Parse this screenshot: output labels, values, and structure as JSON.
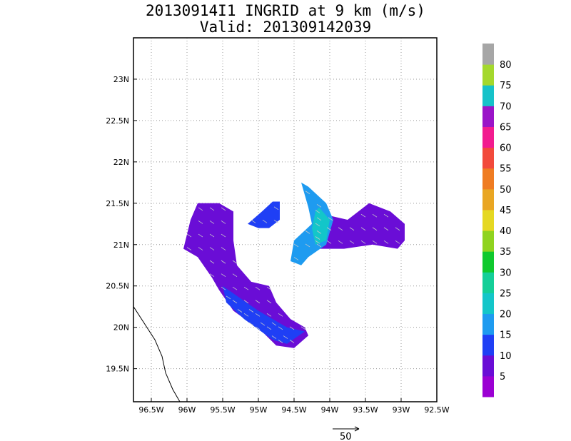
{
  "title_line1": "20130914I1 INGRID at 9 km (m/s)",
  "title_line2": "Valid: 201309142039",
  "vector_scale_label": "50",
  "chart_data": {
    "type": "heatmap",
    "title": "20130914I1 INGRID at 9 km (m/s)",
    "subtitle": "Valid: 201309142039",
    "xlabel": "",
    "ylabel": "",
    "xlim": [
      -96.75,
      -92.5
    ],
    "ylim": [
      19.1,
      23.5
    ],
    "grid": true,
    "x_ticks": [
      {
        "value": -96.5,
        "label": "96.5W"
      },
      {
        "value": -96.0,
        "label": "96W"
      },
      {
        "value": -95.5,
        "label": "95.5W"
      },
      {
        "value": -95.0,
        "label": "95W"
      },
      {
        "value": -94.5,
        "label": "94.5W"
      },
      {
        "value": -94.0,
        "label": "94W"
      },
      {
        "value": -93.5,
        "label": "93.5W"
      },
      {
        "value": -93.0,
        "label": "93W"
      },
      {
        "value": -92.5,
        "label": "92.5W"
      }
    ],
    "y_ticks": [
      {
        "value": 19.5,
        "label": "19.5N"
      },
      {
        "value": 20.0,
        "label": "20N"
      },
      {
        "value": 20.5,
        "label": "20.5N"
      },
      {
        "value": 21.0,
        "label": "21N"
      },
      {
        "value": 21.5,
        "label": "21.5N"
      },
      {
        "value": 22.0,
        "label": "22N"
      },
      {
        "value": 22.5,
        "label": "22.5N"
      },
      {
        "value": 23.0,
        "label": "23N"
      }
    ],
    "colorbar": {
      "labels": [
        "5",
        "10",
        "15",
        "20",
        "25",
        "30",
        "35",
        "40",
        "45",
        "50",
        "55",
        "60",
        "65",
        "70",
        "75",
        "80"
      ],
      "colors": [
        "#9b00d3",
        "#6a0dd6",
        "#1f3ff5",
        "#1e9bf0",
        "#13c6c9",
        "#14cf98",
        "#0fc92e",
        "#8fd31f",
        "#e5d822",
        "#e9a623",
        "#ef7c22",
        "#f24a3c",
        "#f21c8f",
        "#9a14c8",
        "#16c2c9",
        "#a4d82d",
        "#a6a6a6"
      ]
    },
    "regions": [
      {
        "name": "west-band",
        "speed": 5,
        "outline": [
          [
            -96.05,
            20.95
          ],
          [
            -95.95,
            21.3
          ],
          [
            -95.85,
            21.5
          ],
          [
            -95.55,
            21.5
          ],
          [
            -95.35,
            21.4
          ],
          [
            -95.35,
            21.05
          ],
          [
            -95.3,
            20.75
          ],
          [
            -95.1,
            20.55
          ],
          [
            -94.85,
            20.5
          ],
          [
            -94.75,
            20.3
          ],
          [
            -94.55,
            20.1
          ],
          [
            -94.35,
            20.0
          ],
          [
            -94.3,
            19.9
          ],
          [
            -94.5,
            19.75
          ],
          [
            -94.75,
            19.78
          ],
          [
            -94.95,
            19.95
          ],
          [
            -95.35,
            20.2
          ],
          [
            -95.55,
            20.45
          ],
          [
            -95.65,
            20.6
          ],
          [
            -95.85,
            20.85
          ]
        ]
      },
      {
        "name": "west-band-inner",
        "speed": 10,
        "outline": [
          [
            -95.5,
            20.5
          ],
          [
            -95.0,
            20.2
          ],
          [
            -94.6,
            20.0
          ],
          [
            -94.35,
            19.95
          ],
          [
            -94.6,
            19.8
          ],
          [
            -94.8,
            19.85
          ],
          [
            -95.2,
            20.1
          ],
          [
            -95.45,
            20.3
          ]
        ]
      },
      {
        "name": "small-patch",
        "speed": 10,
        "outline": [
          [
            -95.15,
            21.25
          ],
          [
            -94.95,
            21.4
          ],
          [
            -94.8,
            21.52
          ],
          [
            -94.7,
            21.52
          ],
          [
            -94.7,
            21.3
          ],
          [
            -94.85,
            21.2
          ],
          [
            -95.0,
            21.2
          ]
        ]
      },
      {
        "name": "east-band",
        "speed": 5,
        "outline": [
          [
            -94.25,
            21.1
          ],
          [
            -94.0,
            21.35
          ],
          [
            -93.75,
            21.3
          ],
          [
            -93.45,
            21.5
          ],
          [
            -93.15,
            21.4
          ],
          [
            -92.95,
            21.25
          ],
          [
            -92.95,
            21.05
          ],
          [
            -93.05,
            20.95
          ],
          [
            -93.4,
            21.0
          ],
          [
            -93.8,
            20.95
          ],
          [
            -94.15,
            20.95
          ]
        ]
      },
      {
        "name": "east-band-core",
        "speed": 15,
        "outline": [
          [
            -94.3,
            21.7
          ],
          [
            -94.05,
            21.5
          ],
          [
            -93.95,
            21.3
          ],
          [
            -94.05,
            21.0
          ],
          [
            -94.3,
            20.85
          ],
          [
            -94.4,
            20.75
          ],
          [
            -94.55,
            20.8
          ],
          [
            -94.5,
            21.05
          ],
          [
            -94.25,
            21.25
          ],
          [
            -94.3,
            21.45
          ],
          [
            -94.4,
            21.75
          ]
        ]
      },
      {
        "name": "east-band-max",
        "speed": 20,
        "outline": [
          [
            -94.15,
            21.45
          ],
          [
            -94.0,
            21.3
          ],
          [
            -94.05,
            21.05
          ],
          [
            -94.2,
            21.0
          ],
          [
            -94.25,
            21.2
          ],
          [
            -94.2,
            21.4
          ]
        ]
      }
    ],
    "coastline": [
      [
        -96.75,
        20.25
      ],
      [
        -96.6,
        20.05
      ],
      [
        -96.45,
        19.85
      ],
      [
        -96.35,
        19.65
      ],
      [
        -96.3,
        19.45
      ],
      [
        -96.2,
        19.25
      ],
      [
        -96.1,
        19.1
      ]
    ]
  }
}
